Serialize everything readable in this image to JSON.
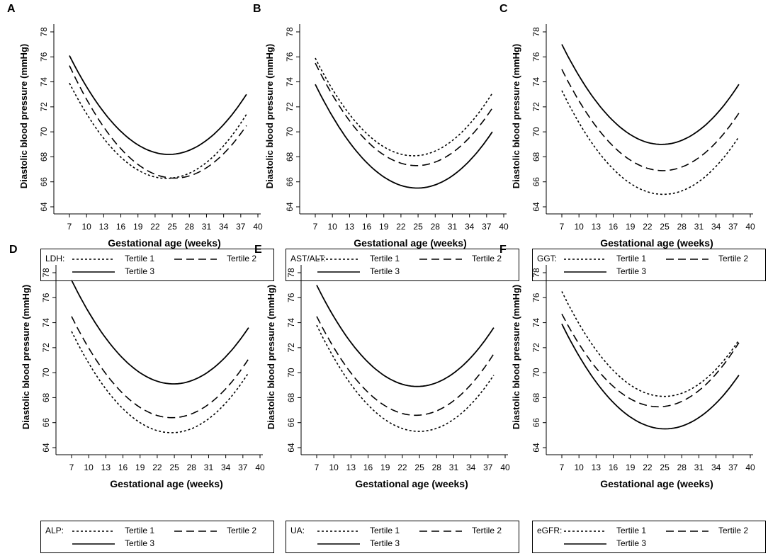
{
  "chart_data": [
    {
      "type": "line",
      "panel": "A",
      "xlabel": "Gestational age (weeks)",
      "ylabel": "Diastolic blood pressure (mmHg)",
      "xticks": [
        7,
        10,
        13,
        16,
        19,
        22,
        25,
        28,
        31,
        34,
        37,
        40
      ],
      "yticks": [
        64,
        66,
        68,
        70,
        72,
        74,
        76,
        78
      ],
      "xlim": [
        6,
        41
      ],
      "ylim": [
        63.2,
        78.8
      ],
      "legend_name": "LDH:",
      "series": [
        {
          "name": "Tertile 1",
          "style": "dotted",
          "x": [
            7,
            25,
            38
          ],
          "y": [
            73.9,
            66.3,
            71.4
          ]
        },
        {
          "name": "Tertile 2",
          "style": "dashed",
          "x": [
            7,
            25,
            38
          ],
          "y": [
            75.3,
            66.3,
            70.5
          ]
        },
        {
          "name": "Tertile 3",
          "style": "solid",
          "x": [
            7,
            25,
            38
          ],
          "y": [
            76.1,
            68.2,
            73.0
          ]
        }
      ]
    },
    {
      "type": "line",
      "panel": "B",
      "xlabel": "Gestational age (weeks)",
      "ylabel": "Diastolic blood pressure (mmHg)",
      "xticks": [
        7,
        10,
        13,
        16,
        19,
        22,
        25,
        28,
        31,
        34,
        37,
        40
      ],
      "yticks": [
        64,
        66,
        68,
        70,
        72,
        74,
        76,
        78
      ],
      "xlim": [
        6,
        41
      ],
      "ylim": [
        63.2,
        78.8
      ],
      "legend_name": "AST/ALT:",
      "series": [
        {
          "name": "Tertile 1",
          "style": "dotted",
          "x": [
            7,
            25,
            38
          ],
          "y": [
            75.9,
            68.1,
            73.1
          ]
        },
        {
          "name": "Tertile 2",
          "style": "dashed",
          "x": [
            7,
            25,
            38
          ],
          "y": [
            75.5,
            67.3,
            71.9
          ]
        },
        {
          "name": "Tertile 3",
          "style": "solid",
          "x": [
            7,
            25,
            38
          ],
          "y": [
            73.8,
            65.5,
            70.0
          ]
        }
      ]
    },
    {
      "type": "line",
      "panel": "C",
      "xlabel": "Gestational age (weeks)",
      "ylabel": "Diastolic blood pressure (mmHg)",
      "xticks": [
        7,
        10,
        13,
        16,
        19,
        22,
        25,
        28,
        31,
        34,
        37,
        40
      ],
      "yticks": [
        64,
        66,
        68,
        70,
        72,
        74,
        76,
        78
      ],
      "xlim": [
        6,
        41
      ],
      "ylim": [
        63.2,
        78.8
      ],
      "legend_name": "GGT:",
      "series": [
        {
          "name": "Tertile 1",
          "style": "dotted",
          "x": [
            7,
            25,
            38
          ],
          "y": [
            73.3,
            65.0,
            69.6
          ]
        },
        {
          "name": "Tertile 2",
          "style": "dashed",
          "x": [
            7,
            25,
            38
          ],
          "y": [
            75.0,
            66.9,
            71.5
          ]
        },
        {
          "name": "Tertile 3",
          "style": "solid",
          "x": [
            7,
            25,
            38
          ],
          "y": [
            77.0,
            69.0,
            73.8
          ]
        }
      ]
    },
    {
      "type": "line",
      "panel": "D",
      "xlabel": "Gestational age (weeks)",
      "ylabel": "Diastolic blood pressure (mmHg)",
      "xticks": [
        7,
        10,
        13,
        16,
        19,
        22,
        25,
        28,
        31,
        34,
        37,
        40
      ],
      "yticks": [
        64,
        66,
        68,
        70,
        72,
        74,
        76,
        78
      ],
      "xlim": [
        6,
        41
      ],
      "ylim": [
        63.2,
        78.8
      ],
      "legend_name": "ALP:",
      "series": [
        {
          "name": "Tertile 1",
          "style": "dotted",
          "x": [
            7,
            25,
            38
          ],
          "y": [
            73.3,
            65.2,
            70.0
          ]
        },
        {
          "name": "Tertile 2",
          "style": "dashed",
          "x": [
            7,
            25,
            38
          ],
          "y": [
            74.5,
            66.4,
            71.1
          ]
        },
        {
          "name": "Tertile 3",
          "style": "solid",
          "x": [
            7,
            25,
            38
          ],
          "y": [
            77.4,
            69.1,
            73.6
          ]
        }
      ]
    },
    {
      "type": "line",
      "panel": "E",
      "xlabel": "Gestational age (weeks)",
      "ylabel": "Diastolic blood pressure (mmHg)",
      "xticks": [
        7,
        10,
        13,
        16,
        19,
        22,
        25,
        28,
        31,
        34,
        37,
        40
      ],
      "yticks": [
        64,
        66,
        68,
        70,
        72,
        74,
        76,
        78
      ],
      "xlim": [
        6,
        41
      ],
      "ylim": [
        63.2,
        78.8
      ],
      "legend_name": "UA:",
      "series": [
        {
          "name": "Tertile 1",
          "style": "dotted",
          "x": [
            7,
            25,
            38
          ],
          "y": [
            73.8,
            65.3,
            69.8
          ]
        },
        {
          "name": "Tertile 2",
          "style": "dashed",
          "x": [
            7,
            25,
            38
          ],
          "y": [
            74.5,
            66.6,
            71.5
          ]
        },
        {
          "name": "Tertile 3",
          "style": "solid",
          "x": [
            7,
            25,
            38
          ],
          "y": [
            77.0,
            68.9,
            73.6
          ]
        }
      ]
    },
    {
      "type": "line",
      "panel": "F",
      "xlabel": "Gestational age (weeks)",
      "ylabel": "Diastolic blood pressure (mmHg)",
      "xticks": [
        7,
        10,
        13,
        16,
        19,
        22,
        25,
        28,
        31,
        34,
        37,
        40
      ],
      "yticks": [
        64,
        66,
        68,
        70,
        72,
        74,
        76,
        78
      ],
      "xlim": [
        6,
        41
      ],
      "ylim": [
        63.2,
        78.8
      ],
      "legend_name": "eGFR:",
      "series": [
        {
          "name": "Tertile 1",
          "style": "dotted",
          "x": [
            7,
            25,
            38
          ],
          "y": [
            76.5,
            68.1,
            72.6
          ]
        },
        {
          "name": "Tertile 2",
          "style": "dashed",
          "x": [
            7,
            25,
            38
          ],
          "y": [
            74.7,
            67.3,
            72.4
          ]
        },
        {
          "name": "Tertile 3",
          "style": "solid",
          "x": [
            7,
            25,
            38
          ],
          "y": [
            73.9,
            65.5,
            69.8
          ]
        }
      ]
    }
  ]
}
